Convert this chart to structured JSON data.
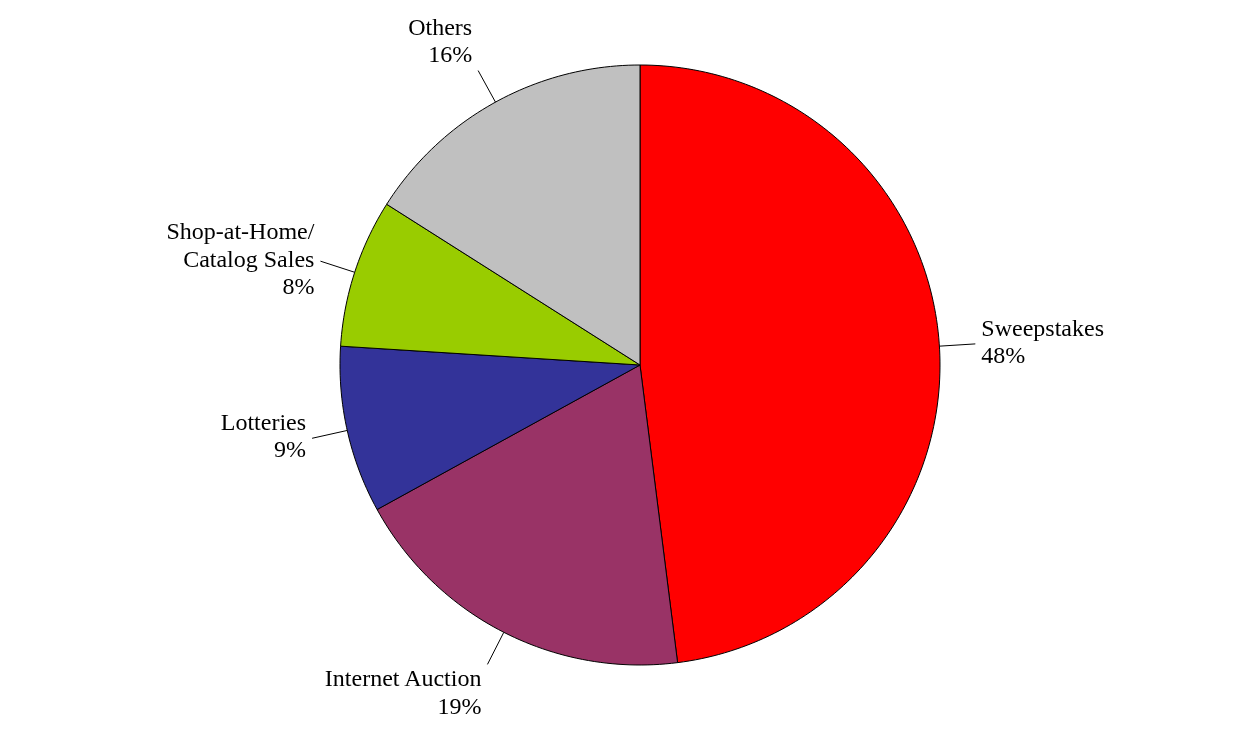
{
  "chart_data": {
    "type": "pie",
    "categories": [
      "Sweepstakes",
      "Internet Auction",
      "Lotteries",
      "Shop-at-Home/Catalog Sales",
      "Others"
    ],
    "values": [
      48,
      19,
      9,
      8,
      16
    ],
    "value_labels": [
      "48%",
      "19%",
      "9%",
      "8%",
      "16%"
    ],
    "colors": [
      "#ff0000",
      "#993366",
      "#333399",
      "#99cc00",
      "#c0c0c0"
    ]
  }
}
